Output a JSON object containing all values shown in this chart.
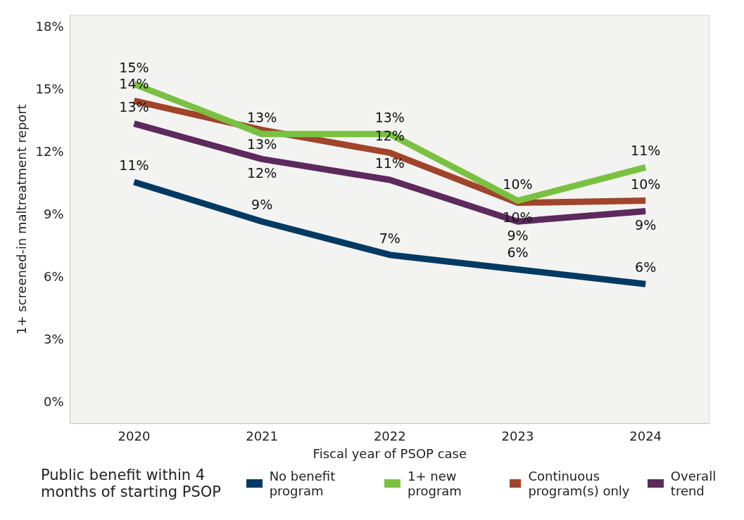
{
  "chart_data": {
    "type": "line",
    "xlabel": "Fiscal year of PSOP case",
    "ylabel": "1+ screened-in maltreatment report",
    "legend_title": "Public benefit within 4 months of starting PSOP",
    "legend": "bottom",
    "grid": false,
    "marker": "none",
    "line_style": "solid",
    "categories": [
      "2020",
      "2021",
      "2022",
      "2023",
      "2024"
    ],
    "ylim": [
      -1,
      18.6
    ],
    "yticks": [
      {
        "value": 0,
        "label": "0%"
      },
      {
        "value": 3,
        "label": "3%"
      },
      {
        "value": 6,
        "label": "6%"
      },
      {
        "value": 9,
        "label": "9%"
      },
      {
        "value": 12,
        "label": "12%"
      },
      {
        "value": 15,
        "label": "15%"
      },
      {
        "value": 18,
        "label": "18%"
      }
    ],
    "series": [
      {
        "name": "No benefit program",
        "color": "#003a63",
        "values": [
          10.6,
          8.7,
          7.1,
          6.4,
          5.7
        ],
        "value_labels": [
          "11%",
          "9%",
          "7%",
          "6%",
          "6%"
        ]
      },
      {
        "name": "1+ new program",
        "color": "#7ac142",
        "values": [
          15.3,
          12.9,
          12.9,
          9.7,
          11.3
        ],
        "value_labels": [
          "15%",
          "13%",
          "13%",
          "10%",
          "11%"
        ]
      },
      {
        "name": "Continuous program(s) only",
        "color": "#a0442c",
        "values": [
          14.5,
          13.1,
          12.0,
          9.6,
          9.7
        ],
        "value_labels": [
          "14%",
          "13%",
          "12%",
          "10%",
          "10%"
        ]
      },
      {
        "name": "Overall trend",
        "color": "#5c2a5c",
        "values": [
          13.4,
          11.7,
          10.7,
          8.7,
          9.2
        ],
        "value_labels": [
          "13%",
          "12%",
          "11%",
          "9%",
          "9%"
        ]
      }
    ]
  }
}
